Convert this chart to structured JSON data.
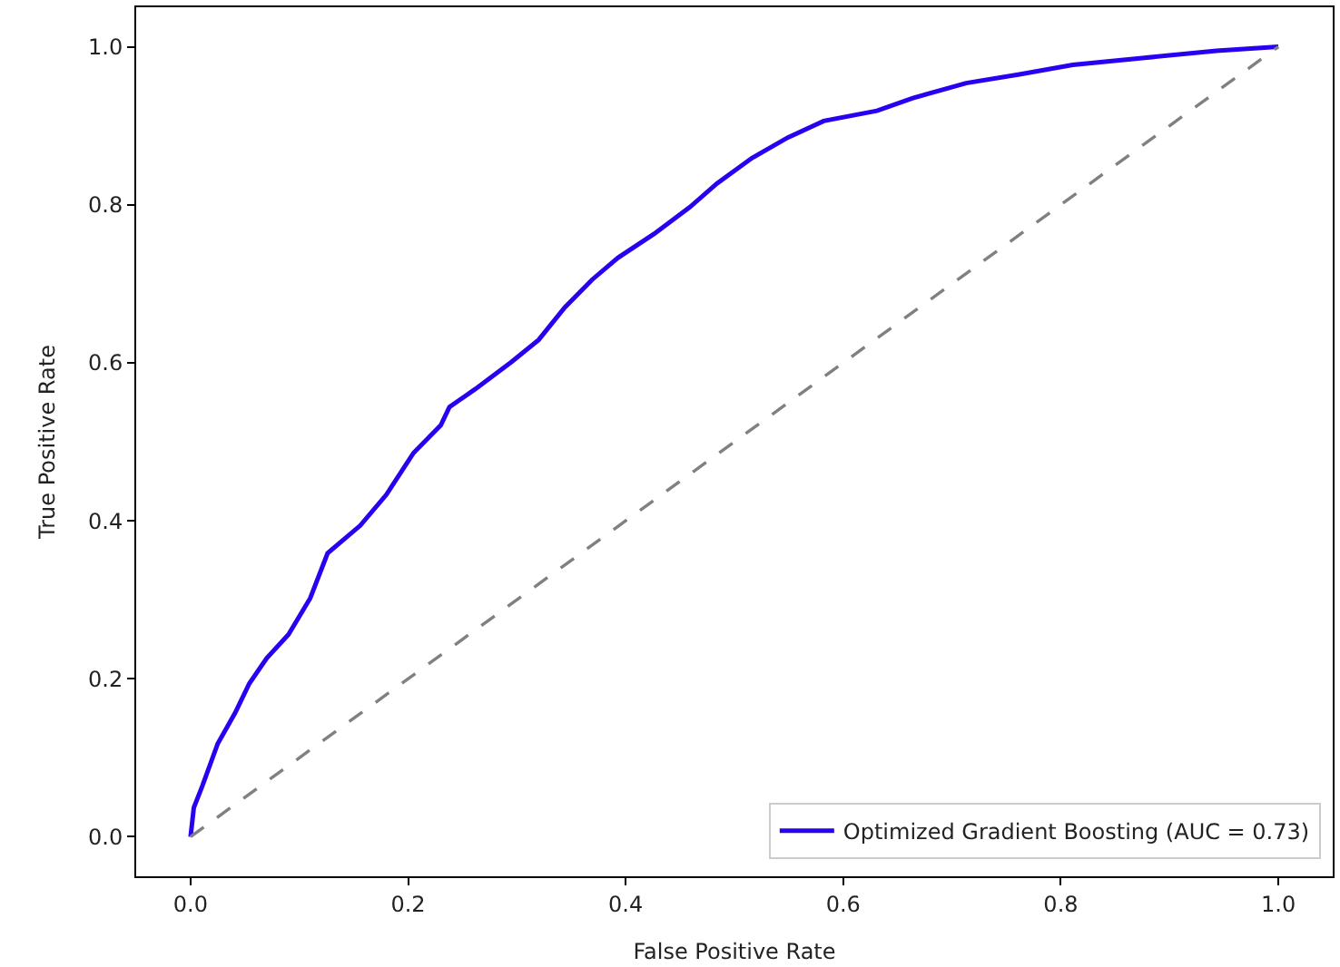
{
  "chart_data": {
    "type": "line",
    "xlabel": "False Positive Rate",
    "ylabel": "True Positive Rate",
    "xlim": [
      -0.05,
      1.05
    ],
    "ylim": [
      -0.05,
      1.05
    ],
    "xticks": [
      {
        "value": 0,
        "label": "0.0"
      },
      {
        "value": 0.2,
        "label": "0.2"
      },
      {
        "value": 0.4,
        "label": "0.4"
      },
      {
        "value": 0.6,
        "label": "0.6"
      },
      {
        "value": 0.8,
        "label": "0.8"
      },
      {
        "value": 1,
        "label": "1.0"
      }
    ],
    "yticks": [
      {
        "value": 0,
        "label": "0.0"
      },
      {
        "value": 0.2,
        "label": "0.2"
      },
      {
        "value": 0.4,
        "label": "0.4"
      },
      {
        "value": 0.6,
        "label": "0.6"
      },
      {
        "value": 0.8,
        "label": "0.8"
      },
      {
        "value": 1,
        "label": "1.0"
      }
    ],
    "legend": "bottom right",
    "marker": "none",
    "series": [
      {
        "name": "Optimized Gradient Boosting (AUC = 0.73)",
        "color": "#2a00f0",
        "line_style": "solid",
        "x": [
          0,
          0.003,
          0.011,
          0.025,
          0.041,
          0.054,
          0.07,
          0.09,
          0.11,
          0.126,
          0.156,
          0.18,
          0.205,
          0.23,
          0.238,
          0.262,
          0.295,
          0.32,
          0.344,
          0.369,
          0.393,
          0.426,
          0.459,
          0.484,
          0.516,
          0.549,
          0.582,
          0.631,
          0.664,
          0.713,
          0.762,
          0.811,
          0.877,
          0.943,
          1.0
        ],
        "values": [
          0,
          0.037,
          0.065,
          0.118,
          0.157,
          0.194,
          0.226,
          0.256,
          0.302,
          0.359,
          0.394,
          0.433,
          0.486,
          0.521,
          0.544,
          0.567,
          0.601,
          0.629,
          0.67,
          0.705,
          0.733,
          0.763,
          0.797,
          0.827,
          0.859,
          0.885,
          0.906,
          0.919,
          0.935,
          0.954,
          0.965,
          0.977,
          0.986,
          0.995,
          1.0
        ]
      },
      {
        "color": "#808080",
        "line_style": "dashed",
        "x": [
          0,
          1
        ],
        "values": [
          0,
          1
        ]
      }
    ]
  }
}
